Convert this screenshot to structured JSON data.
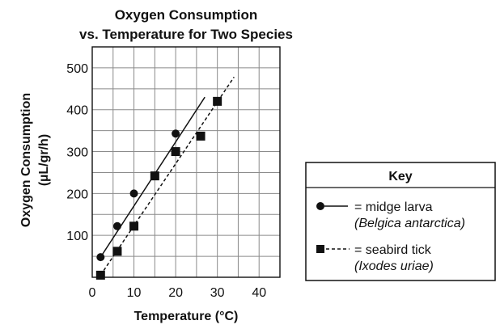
{
  "chart_data": {
    "type": "scatter",
    "title": [
      "Oxygen Consumption",
      "vs. Temperature for Two Species"
    ],
    "xlabel": "Temperature (°C)",
    "ylabel": [
      "Oxygen Consumption",
      "(µL/gr/h)"
    ],
    "xlim": [
      0,
      45
    ],
    "ylim": [
      0,
      550
    ],
    "xticks": [
      0,
      10,
      20,
      30,
      40
    ],
    "yticks": [
      100,
      200,
      300,
      400,
      500
    ],
    "xtick_labels": [
      "0",
      "10",
      "20",
      "30",
      "40"
    ],
    "ytick_labels": [
      "100",
      "200",
      "300",
      "400",
      "500"
    ],
    "grid": true,
    "legend_position": "right",
    "legend_title": "Key",
    "series": [
      {
        "name": "= midge larva",
        "species": "(Belgica antarctica)",
        "marker": "circle",
        "line_style": "solid",
        "x": [
          2,
          6,
          10,
          20
        ],
        "y": [
          48,
          122,
          200,
          343
        ],
        "trend_line": {
          "x": [
            2,
            27
          ],
          "y": [
            48,
            430
          ]
        }
      },
      {
        "name": "= seabird tick",
        "species": "(Ixodes uriae)",
        "marker": "square",
        "line_style": "dashed",
        "x": [
          2,
          6,
          10,
          15,
          20,
          26,
          30
        ],
        "y": [
          5,
          62,
          122,
          242,
          300,
          337,
          420
        ],
        "trend_line": {
          "x": [
            2,
            34
          ],
          "y": [
            5,
            478
          ]
        }
      }
    ]
  }
}
